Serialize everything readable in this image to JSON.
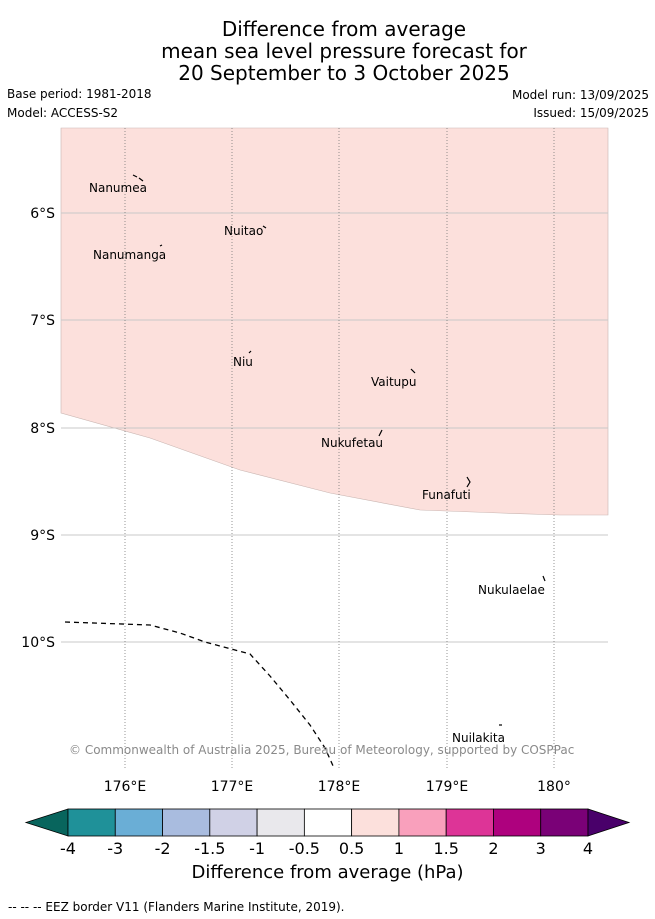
{
  "title": {
    "line1": "Difference from average",
    "line2": "mean sea level pressure forecast for",
    "line3": "20 September to 3 October 2025"
  },
  "meta": {
    "base_period": "Base period: 1981-2018",
    "model": "Model: ACCESS-S2",
    "model_run": "Model run: 13/09/2025",
    "issued": "Issued: 15/09/2025"
  },
  "map": {
    "lon_ticks": [
      "176°E",
      "177°E",
      "178°E",
      "179°E",
      "180°"
    ],
    "lat_ticks": [
      "6°S",
      "7°S",
      "8°S",
      "9°S",
      "10°S"
    ],
    "places": [
      "Nanumea",
      "Nuitao",
      "Nanumanga",
      "Niu",
      "Vaitupu",
      "Nukufetau",
      "Funafuti",
      "Nukulaelae",
      "Nuilakita"
    ],
    "copyright": "© Commonwealth of Australia 2025, Bureau of Meteorology, supported by COSPPac",
    "anomaly_fill_color": "#fce0dc"
  },
  "colorbar": {
    "title": "Difference from average (hPa)",
    "tick_labels": [
      "-4",
      "-3",
      "-2",
      "-1.5",
      "-1",
      "-0.5",
      "0.5",
      "1",
      "1.5",
      "2",
      "3",
      "4"
    ],
    "colors": [
      "#08655d",
      "#1f9199",
      "#6aaed6",
      "#a9bcdf",
      "#d0d1e6",
      "#e9e8ec",
      "#ffffff",
      "#fce0dc",
      "#f9a0bc",
      "#dd3497",
      "#ae017e",
      "#7a0177",
      "#49006a"
    ]
  },
  "legend": {
    "eez_line": "-- -- -- EEZ border V11 (Flanders Marine Institute, 2019)."
  }
}
